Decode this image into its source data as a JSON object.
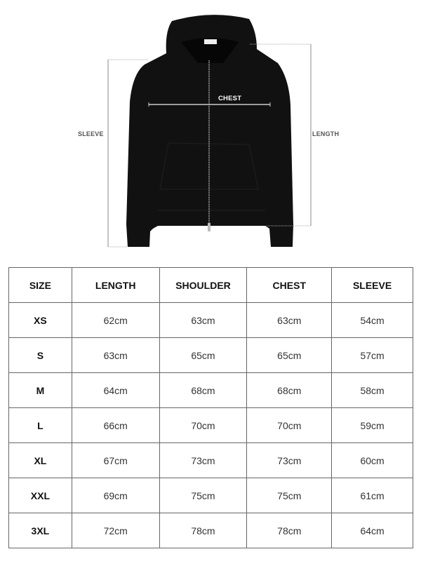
{
  "figure": {
    "labels": {
      "chest": "CHEST",
      "sleeve": "SLEEVE",
      "length": "LENGTH"
    },
    "garment_color": "#111111"
  },
  "table": {
    "headers": [
      "SIZE",
      "LENGTH",
      "SHOULDER",
      "CHEST",
      "SLEEVE"
    ],
    "rows": [
      [
        "XS",
        "62cm",
        "63cm",
        "63cm",
        "54cm"
      ],
      [
        "S",
        "63cm",
        "65cm",
        "65cm",
        "57cm"
      ],
      [
        "M",
        "64cm",
        "68cm",
        "68cm",
        "58cm"
      ],
      [
        "L",
        "66cm",
        "70cm",
        "70cm",
        "59cm"
      ],
      [
        "XL",
        "67cm",
        "73cm",
        "73cm",
        "60cm"
      ],
      [
        "XXL",
        "69cm",
        "75cm",
        "75cm",
        "61cm"
      ],
      [
        "3XL",
        "72cm",
        "78cm",
        "78cm",
        "64cm"
      ]
    ]
  }
}
